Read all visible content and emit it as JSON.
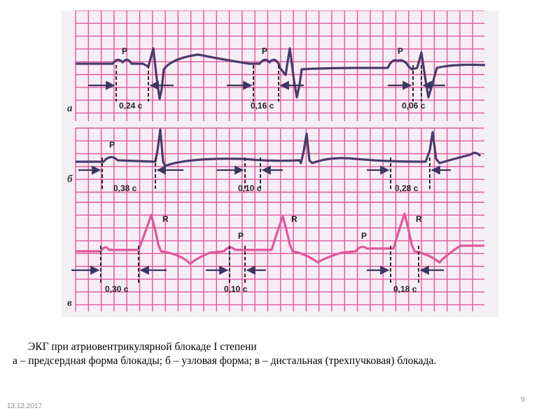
{
  "figure": {
    "colors": {
      "grid": "#e2569b",
      "grid_bg": "#f3f0f3",
      "trace_a": "#4a3a6e",
      "trace_b": "#4a3a6e",
      "trace_c": "#e2569b",
      "marks": "#2a2a2a",
      "arrow_fill": "#6a6590"
    },
    "strips": [
      {
        "id": "a",
        "letter": "а",
        "p_label": "P",
        "intervals": [
          "0,24 с",
          "0,16 с",
          "0,06 с"
        ]
      },
      {
        "id": "b",
        "letter": "б",
        "p_label": "P",
        "intervals": [
          "0,38 с",
          "0,10 с",
          "0,28 с"
        ]
      },
      {
        "id": "c",
        "letter": "в",
        "p_label": "P",
        "r_label": "R",
        "intervals": [
          "0,30 с",
          "0,10 с",
          "0,18 с"
        ]
      }
    ]
  },
  "caption": {
    "title": "ЭКГ при атриовентрикулярной блокаде I степени",
    "body": "а – предсердная форма блокады; б – узловая форма;  в – дистальная (трехпучковая) блокада."
  },
  "footer": {
    "date": "13.12.2017",
    "page": "9"
  }
}
